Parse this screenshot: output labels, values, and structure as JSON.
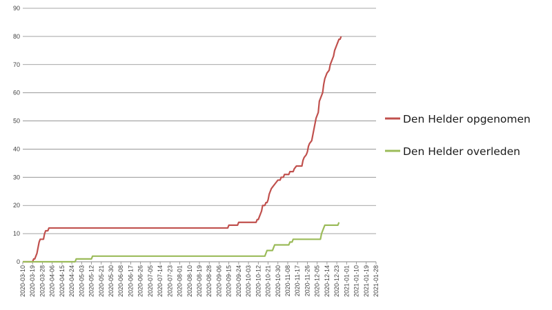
{
  "chart_data": {
    "type": "line",
    "title": "",
    "xlabel": "",
    "ylabel": "",
    "ylim": [
      0,
      90
    ],
    "yticks": [
      0,
      10,
      20,
      30,
      40,
      50,
      60,
      70,
      80,
      90
    ],
    "xlim": [
      "2020-03-10",
      "2021-01-28"
    ],
    "xticks": [
      "2020-03-10",
      "2020-03-19",
      "2020-03-28",
      "2020-04-06",
      "2020-04-15",
      "2020-04-24",
      "2020-05-03",
      "2020-05-12",
      "2020-05-21",
      "2020-05-30",
      "2020-06-08",
      "2020-06-17",
      "2020-06-26",
      "2020-07-05",
      "2020-07-14",
      "2020-07-23",
      "2020-08-01",
      "2020-08-10",
      "2020-08-19",
      "2020-08-28",
      "2020-09-06",
      "2020-09-15",
      "2020-09-24",
      "2020-10-03",
      "2020-10-12",
      "2020-10-21",
      "2020-10-30",
      "2020-11-08",
      "2020-11-17",
      "2020-11-26",
      "2020-12-05",
      "2020-12-14",
      "2020-12-23",
      "2021-01-01",
      "2021-01-10",
      "2021-01-19",
      "2021-01-28"
    ],
    "grid": true,
    "legend": "right",
    "series": [
      {
        "name": "Den Helder opgenomen",
        "color": "#c0504d",
        "points": [
          [
            "2020-03-10",
            0
          ],
          [
            "2020-03-19",
            0
          ],
          [
            "2020-03-20",
            1
          ],
          [
            "2020-03-21",
            1
          ],
          [
            "2020-03-22",
            2
          ],
          [
            "2020-03-23",
            3
          ],
          [
            "2020-03-24",
            5
          ],
          [
            "2020-03-25",
            7
          ],
          [
            "2020-03-26",
            8
          ],
          [
            "2020-03-29",
            8
          ],
          [
            "2020-03-30",
            10
          ],
          [
            "2020-03-31",
            11
          ],
          [
            "2020-04-02",
            11
          ],
          [
            "2020-04-03",
            12
          ],
          [
            "2020-09-14",
            12
          ],
          [
            "2020-09-15",
            13
          ],
          [
            "2020-09-23",
            13
          ],
          [
            "2020-09-24",
            14
          ],
          [
            "2020-10-10",
            14
          ],
          [
            "2020-10-11",
            15
          ],
          [
            "2020-10-12",
            15
          ],
          [
            "2020-10-13",
            16
          ],
          [
            "2020-10-14",
            17
          ],
          [
            "2020-10-15",
            18
          ],
          [
            "2020-10-16",
            20
          ],
          [
            "2020-10-18",
            20
          ],
          [
            "2020-10-19",
            21
          ],
          [
            "2020-10-20",
            21
          ],
          [
            "2020-10-21",
            22
          ],
          [
            "2020-10-22",
            24
          ],
          [
            "2020-10-23",
            25
          ],
          [
            "2020-10-24",
            26
          ],
          [
            "2020-10-26",
            27
          ],
          [
            "2020-10-28",
            28
          ],
          [
            "2020-10-30",
            29
          ],
          [
            "2020-11-01",
            29
          ],
          [
            "2020-11-02",
            30
          ],
          [
            "2020-11-04",
            30
          ],
          [
            "2020-11-05",
            31
          ],
          [
            "2020-11-09",
            31
          ],
          [
            "2020-11-10",
            32
          ],
          [
            "2020-11-13",
            32
          ],
          [
            "2020-11-14",
            33
          ],
          [
            "2020-11-16",
            34
          ],
          [
            "2020-11-21",
            34
          ],
          [
            "2020-11-22",
            36
          ],
          [
            "2020-11-23",
            37
          ],
          [
            "2020-11-25",
            38
          ],
          [
            "2020-11-26",
            39
          ],
          [
            "2020-11-27",
            41
          ],
          [
            "2020-11-28",
            42
          ],
          [
            "2020-11-30",
            43
          ],
          [
            "2020-12-01",
            45
          ],
          [
            "2020-12-02",
            47
          ],
          [
            "2020-12-03",
            49
          ],
          [
            "2020-12-04",
            51
          ],
          [
            "2020-12-05",
            52
          ],
          [
            "2020-12-06",
            53
          ],
          [
            "2020-12-07",
            57
          ],
          [
            "2020-12-08",
            58
          ],
          [
            "2020-12-09",
            59
          ],
          [
            "2020-12-10",
            60
          ],
          [
            "2020-12-11",
            63
          ],
          [
            "2020-12-12",
            65
          ],
          [
            "2020-12-13",
            66
          ],
          [
            "2020-12-14",
            67
          ],
          [
            "2020-12-16",
            68
          ],
          [
            "2020-12-17",
            70
          ],
          [
            "2020-12-18",
            71
          ],
          [
            "2020-12-19",
            72
          ],
          [
            "2020-12-20",
            73
          ],
          [
            "2020-12-21",
            75
          ],
          [
            "2020-12-22",
            76
          ],
          [
            "2020-12-23",
            77
          ],
          [
            "2020-12-24",
            78
          ],
          [
            "2020-12-25",
            79
          ],
          [
            "2020-12-26",
            79
          ],
          [
            "2020-12-27",
            80
          ]
        ]
      },
      {
        "name": "Den Helder overleden",
        "color": "#9bbb59",
        "points": [
          [
            "2020-03-10",
            0
          ],
          [
            "2020-04-27",
            0
          ],
          [
            "2020-04-28",
            1
          ],
          [
            "2020-05-12",
            1
          ],
          [
            "2020-05-13",
            2
          ],
          [
            "2020-10-18",
            2
          ],
          [
            "2020-10-19",
            3
          ],
          [
            "2020-10-20",
            4
          ],
          [
            "2020-10-25",
            4
          ],
          [
            "2020-10-26",
            5
          ],
          [
            "2020-10-27",
            6
          ],
          [
            "2020-11-09",
            6
          ],
          [
            "2020-11-10",
            7
          ],
          [
            "2020-11-12",
            7
          ],
          [
            "2020-11-13",
            8
          ],
          [
            "2020-12-08",
            8
          ],
          [
            "2020-12-09",
            10
          ],
          [
            "2020-12-10",
            11
          ],
          [
            "2020-12-11",
            12
          ],
          [
            "2020-12-12",
            13
          ],
          [
            "2020-12-24",
            13
          ],
          [
            "2020-12-25",
            14
          ]
        ]
      }
    ]
  }
}
